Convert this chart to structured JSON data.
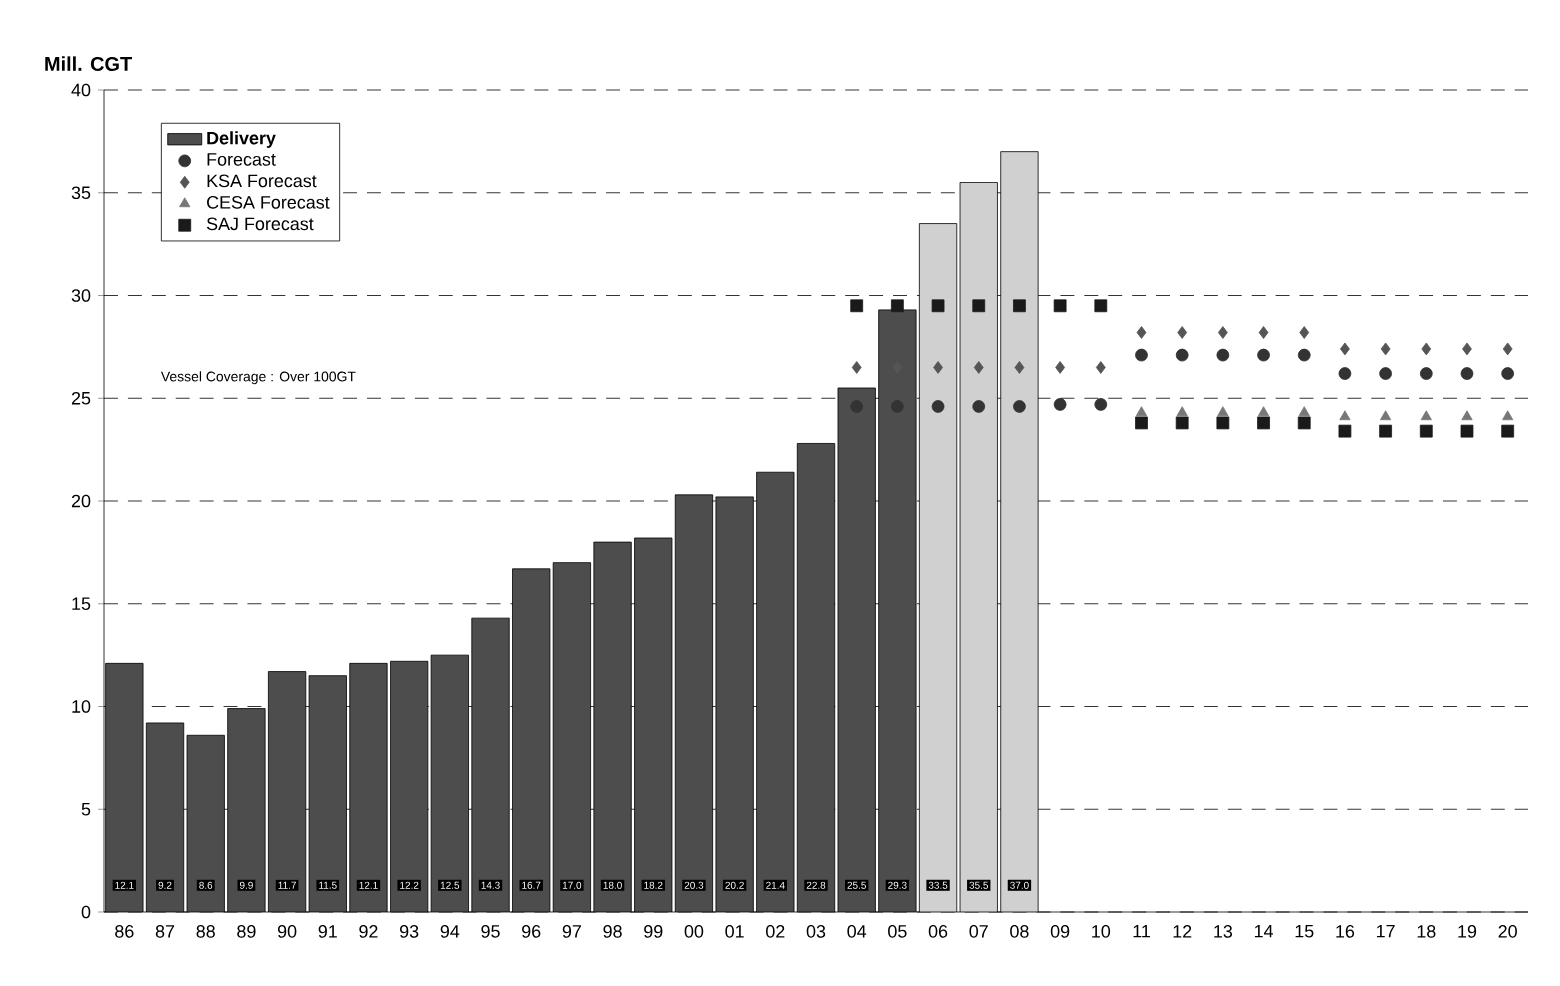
{
  "chart_data": {
    "type": "bar",
    "ylabel": "Mill. CGT",
    "categories": [
      "86",
      "87",
      "88",
      "89",
      "90",
      "91",
      "92",
      "93",
      "94",
      "95",
      "96",
      "97",
      "98",
      "99",
      "00",
      "01",
      "02",
      "03",
      "04",
      "05",
      "06",
      "07",
      "08",
      "09",
      "10",
      "11",
      "12",
      "13",
      "14",
      "15",
      "16",
      "17",
      "18",
      "19",
      "20"
    ],
    "ylim": [
      0,
      40
    ],
    "yticks": [
      0,
      5,
      10,
      15,
      20,
      25,
      30,
      35,
      40
    ],
    "grid": "y",
    "line_style": "dashed",
    "legend": "top left",
    "annotations": [
      "Vessel Coverage  : Over 100GT"
    ],
    "series": [
      {
        "name": "Delivery",
        "colors": [
          "#4d4d4d",
          "#4d4d4d",
          "#4d4d4d",
          "#4d4d4d",
          "#4d4d4d",
          "#4d4d4d",
          "#4d4d4d",
          "#4d4d4d",
          "#4d4d4d",
          "#4d4d4d",
          "#4d4d4d",
          "#4d4d4d",
          "#4d4d4d",
          "#4d4d4d",
          "#4d4d4d",
          "#4d4d4d",
          "#4d4d4d",
          "#4d4d4d",
          "#4d4d4d",
          "#4d4d4d",
          "#d0d0d0",
          "#d0d0d0",
          "#d0d0d0",
          null,
          null,
          null,
          null,
          null,
          null,
          null,
          null,
          null,
          null,
          null,
          null
        ],
        "values": [
          12.1,
          9.2,
          8.6,
          9.9,
          11.7,
          11.5,
          12.1,
          12.2,
          12.5,
          14.3,
          16.7,
          17.0,
          18.0,
          18.2,
          20.3,
          20.2,
          21.4,
          22.8,
          25.5,
          29.3,
          33.5,
          35.5,
          37.0,
          null,
          null,
          null,
          null,
          null,
          null,
          null,
          null,
          null,
          null,
          null,
          null
        ],
        "value_labels": [
          "12.1",
          "9.2",
          "8.6",
          "9.9",
          "11.7",
          "11.5",
          "12.1",
          "12.2",
          "12.5",
          "14.3",
          "16.7",
          "17.0",
          "18.0",
          "18.2",
          "20.3",
          "20.2",
          "21.4",
          "22.8",
          "25.5",
          "29.3",
          "33.5",
          "35.5",
          "37.0",
          null,
          null,
          null,
          null,
          null,
          null,
          null,
          null,
          null,
          null,
          null,
          null
        ]
      },
      {
        "name": "Forecast",
        "type": "scatter",
        "marker": "circle",
        "color": "#333333",
        "values": [
          null,
          null,
          null,
          null,
          null,
          null,
          null,
          null,
          null,
          null,
          null,
          null,
          null,
          null,
          null,
          null,
          null,
          null,
          24.6,
          24.6,
          24.6,
          24.6,
          24.6,
          24.7,
          24.7,
          27.1,
          27.1,
          27.1,
          27.1,
          27.1,
          26.2,
          26.2,
          26.2,
          26.2,
          26.2
        ]
      },
      {
        "name": "KSA    Forecast",
        "type": "scatter",
        "marker": "diamond",
        "color": "#555555",
        "values": [
          null,
          null,
          null,
          null,
          null,
          null,
          null,
          null,
          null,
          null,
          null,
          null,
          null,
          null,
          null,
          null,
          null,
          null,
          26.5,
          26.5,
          26.5,
          26.5,
          26.5,
          26.5,
          26.5,
          28.2,
          28.2,
          28.2,
          28.2,
          28.2,
          27.4,
          27.4,
          27.4,
          27.4,
          27.4
        ]
      },
      {
        "name": "CESA Forecast",
        "type": "scatter",
        "marker": "triangle",
        "color": "#777777",
        "values": [
          null,
          null,
          null,
          null,
          null,
          null,
          null,
          null,
          null,
          null,
          null,
          null,
          null,
          null,
          null,
          null,
          null,
          null,
          null,
          null,
          null,
          null,
          null,
          null,
          null,
          24.3,
          24.3,
          24.3,
          24.3,
          24.3,
          24.1,
          24.1,
          24.1,
          24.1,
          24.1
        ]
      },
      {
        "name": "SAJ     Forecast",
        "type": "scatter",
        "marker": "square",
        "color": "#1a1a1a",
        "values": [
          null,
          null,
          null,
          null,
          null,
          null,
          null,
          null,
          null,
          null,
          null,
          null,
          null,
          null,
          null,
          null,
          null,
          null,
          29.5,
          29.5,
          29.5,
          29.5,
          29.5,
          29.5,
          29.5,
          23.8,
          23.8,
          23.8,
          23.8,
          23.8,
          23.4,
          23.4,
          23.4,
          23.4,
          23.4
        ]
      }
    ]
  }
}
